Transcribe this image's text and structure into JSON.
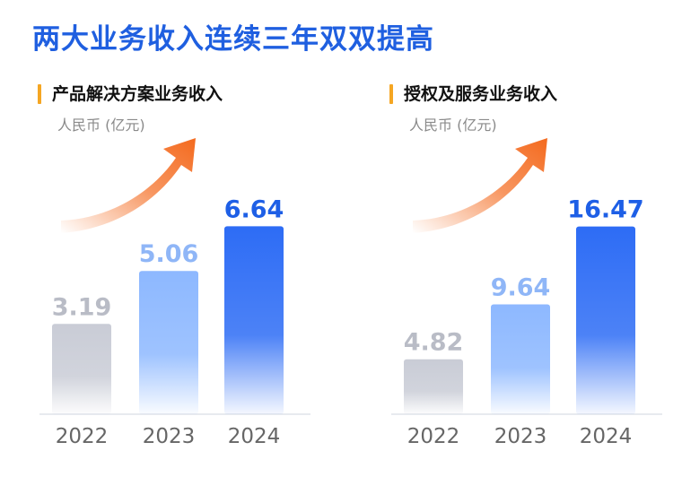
{
  "title": "两大业务收入连续三年双双提高",
  "chart_data": [
    {
      "type": "bar",
      "title": "产品解决方案业务收入",
      "ylabel": "人民币 (亿元)",
      "categories": [
        "2022",
        "2023",
        "2024"
      ],
      "values": [
        3.19,
        5.06,
        6.64
      ],
      "ylim": [
        0,
        9.5
      ],
      "grid": false,
      "colors": {
        "2022": "#c9ccd6",
        "2023": "#8db8ff",
        "2024": "#2d6cf5"
      },
      "value_label_colors": {
        "2022": "#b9bcc6",
        "2023": "#8fb6f7",
        "2024": "#1e5fe6"
      },
      "arrow_color": "#f46a1e"
    },
    {
      "type": "bar",
      "title": "授权及服务业务收入",
      "ylabel": "人民币 (亿元)",
      "categories": [
        "2022",
        "2023",
        "2024"
      ],
      "values": [
        4.82,
        9.64,
        16.47
      ],
      "ylim": [
        0,
        23.6
      ],
      "grid": false,
      "colors": {
        "2022": "#c9ccd6",
        "2023": "#8db8ff",
        "2024": "#2d6cf5"
      },
      "value_label_colors": {
        "2022": "#b9bcc6",
        "2023": "#8fb6f7",
        "2024": "#1e5fe6"
      },
      "arrow_color": "#f46a1e"
    }
  ]
}
